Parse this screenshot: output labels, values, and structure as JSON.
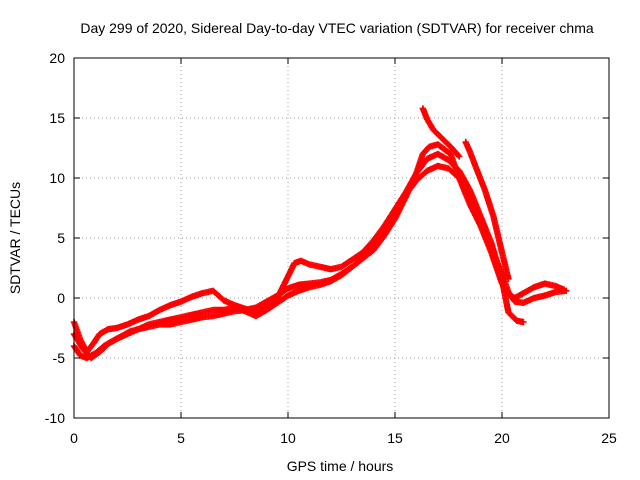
{
  "chart_data": {
    "type": "scatter",
    "title": "Day 299 of 2020, Sidereal Day-to-day VTEC variation (SDTVAR) for receiver chma",
    "xlabel": "GPS time / hours",
    "ylabel": "SDTVAR / TECUs",
    "xlim": [
      0,
      25
    ],
    "ylim": [
      -10,
      20
    ],
    "xticks": [
      0,
      5,
      10,
      15,
      20,
      25
    ],
    "yticks": [
      -10,
      -5,
      0,
      5,
      10,
      15,
      20
    ],
    "xtick_labels": [
      "0",
      "5",
      "10",
      "15",
      "20",
      "25"
    ],
    "ytick_labels": [
      "-10",
      "-5",
      "0",
      "5",
      "10",
      "15",
      "20"
    ],
    "grid": true,
    "marker": "+",
    "color": "#ff0000",
    "series": [
      {
        "name": "track-a",
        "x": [
          0.0,
          0.3,
          0.6,
          0.9,
          1.2,
          1.6,
          2.0,
          2.5,
          3.0,
          3.5,
          4.0,
          4.5,
          5.0,
          5.5,
          6.0,
          6.5,
          7.0,
          7.5,
          8.0,
          8.5,
          9.0,
          9.5,
          10.0,
          10.3,
          10.6,
          11.0,
          11.5,
          12.0,
          12.5,
          13.0,
          13.5,
          14.0,
          14.5,
          15.0,
          15.5,
          16.0,
          16.3,
          16.6,
          17.0,
          17.3,
          17.6,
          18.0,
          18.5,
          19.0,
          19.5,
          20.0,
          20.3,
          20.6,
          21.0,
          21.5,
          22.0,
          22.5,
          22.9
        ],
        "y": [
          -2.0,
          -3.5,
          -4.5,
          -3.8,
          -3.0,
          -2.6,
          -2.5,
          -2.2,
          -1.8,
          -1.5,
          -1.0,
          -0.6,
          -0.3,
          0.1,
          0.4,
          0.6,
          -0.2,
          -0.6,
          -0.9,
          -1.2,
          -0.8,
          0.0,
          1.8,
          2.9,
          3.1,
          2.8,
          2.6,
          2.4,
          2.6,
          3.2,
          3.8,
          4.8,
          6.0,
          7.4,
          8.8,
          10.4,
          12.0,
          12.6,
          12.8,
          12.4,
          12.0,
          10.0,
          7.8,
          6.0,
          3.8,
          1.2,
          0.3,
          0.0,
          0.4,
          0.9,
          1.2,
          1.0,
          0.7
        ]
      },
      {
        "name": "track-b",
        "x": [
          0.0,
          0.4,
          0.8,
          1.2,
          1.6,
          2.0,
          2.5,
          3.0,
          3.5,
          4.0,
          4.5,
          5.0,
          5.5,
          6.0,
          6.5,
          7.0,
          7.5,
          8.0,
          8.5,
          9.0,
          9.5,
          10.0,
          10.5,
          11.0,
          11.5,
          12.0,
          12.5,
          13.0,
          13.5,
          14.0,
          14.5,
          15.0,
          15.5,
          16.0,
          16.5,
          17.0,
          17.5,
          18.0,
          18.5,
          19.0,
          19.5,
          20.0,
          20.3,
          20.7,
          21.0
        ],
        "y": [
          -3.0,
          -4.2,
          -5.0,
          -4.5,
          -3.8,
          -3.4,
          -3.0,
          -2.6,
          -2.2,
          -2.0,
          -1.8,
          -1.6,
          -1.4,
          -1.2,
          -1.0,
          -1.0,
          -0.8,
          -1.1,
          -1.5,
          -1.0,
          -0.4,
          0.2,
          0.6,
          0.9,
          1.1,
          1.4,
          1.9,
          2.6,
          3.3,
          4.0,
          5.2,
          6.6,
          8.4,
          10.4,
          11.6,
          12.0,
          11.5,
          10.6,
          9.0,
          6.8,
          4.6,
          1.5,
          -1.2,
          -1.9,
          -2.0
        ]
      },
      {
        "name": "track-c",
        "x": [
          0.0,
          0.3,
          0.6,
          1.0,
          1.4,
          1.8,
          2.2,
          2.6,
          3.0,
          3.5,
          4.0,
          4.5,
          5.0,
          5.5,
          6.0,
          6.5,
          7.0,
          7.5,
          8.0,
          8.5,
          9.0,
          9.5,
          10.0,
          10.5,
          11.0,
          11.5,
          12.0,
          12.5,
          13.0,
          13.5,
          14.0,
          14.5,
          15.0,
          15.5,
          16.0,
          16.5,
          17.0,
          17.5,
          18.0,
          18.5,
          19.0,
          19.5,
          20.0,
          20.3,
          20.6,
          21.0,
          21.5,
          22.0,
          22.5,
          23.0
        ],
        "y": [
          -4.0,
          -4.8,
          -5.0,
          -4.6,
          -4.0,
          -3.6,
          -3.2,
          -2.8,
          -2.6,
          -2.4,
          -2.2,
          -2.2,
          -2.0,
          -1.8,
          -1.6,
          -1.5,
          -1.3,
          -1.1,
          -1.0,
          -0.8,
          -0.3,
          0.2,
          0.8,
          1.1,
          1.2,
          1.3,
          1.5,
          2.0,
          2.6,
          3.4,
          4.2,
          5.4,
          7.0,
          8.6,
          9.8,
          10.6,
          11.0,
          10.8,
          10.0,
          8.4,
          6.4,
          4.2,
          2.0,
          0.5,
          -0.3,
          -0.4,
          0.0,
          0.2,
          0.5,
          0.6
        ]
      },
      {
        "name": "track-d",
        "x": [
          16.3,
          16.5,
          16.8,
          17.2,
          17.6,
          18.0
        ],
        "y": [
          15.8,
          14.9,
          14.0,
          13.3,
          12.6,
          11.8
        ]
      },
      {
        "name": "track-e",
        "x": [
          18.3,
          18.5,
          18.8,
          19.2,
          19.6,
          20.0,
          20.3
        ],
        "y": [
          13.0,
          12.2,
          10.8,
          9.0,
          6.8,
          3.8,
          1.6
        ]
      }
    ]
  }
}
